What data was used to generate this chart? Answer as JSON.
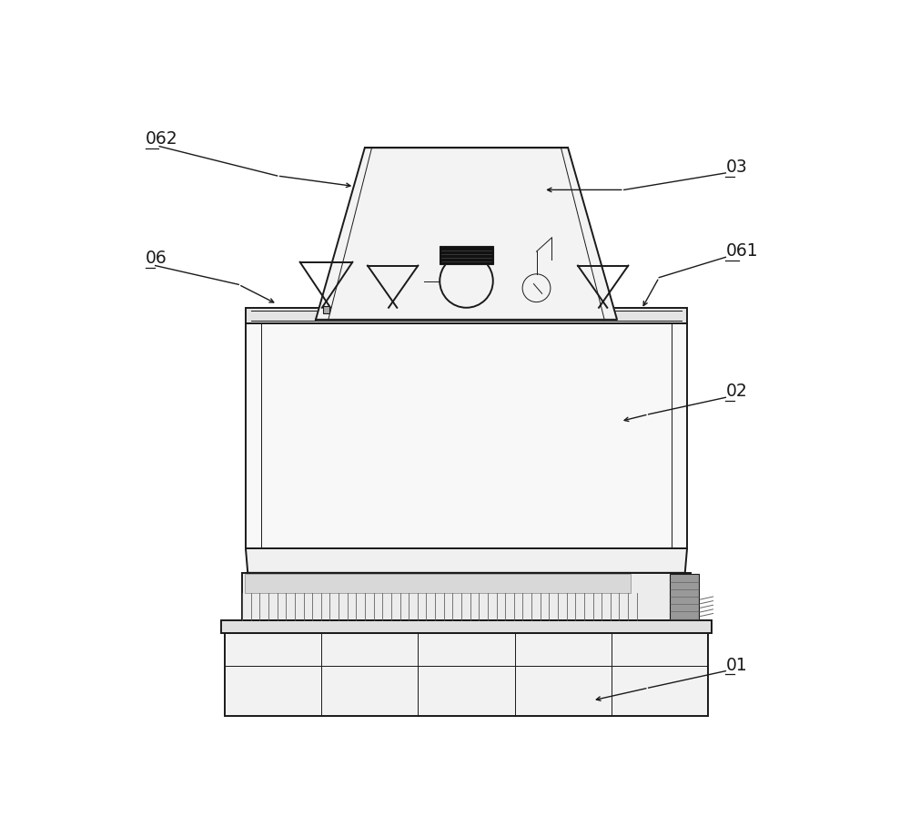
{
  "bg_color": "#ffffff",
  "line_color": "#1a1a1a",
  "figsize": [
    10.0,
    9.09
  ],
  "dpi": 100,
  "lw_main": 1.4,
  "lw_thin": 0.7,
  "lw_hair": 0.4
}
